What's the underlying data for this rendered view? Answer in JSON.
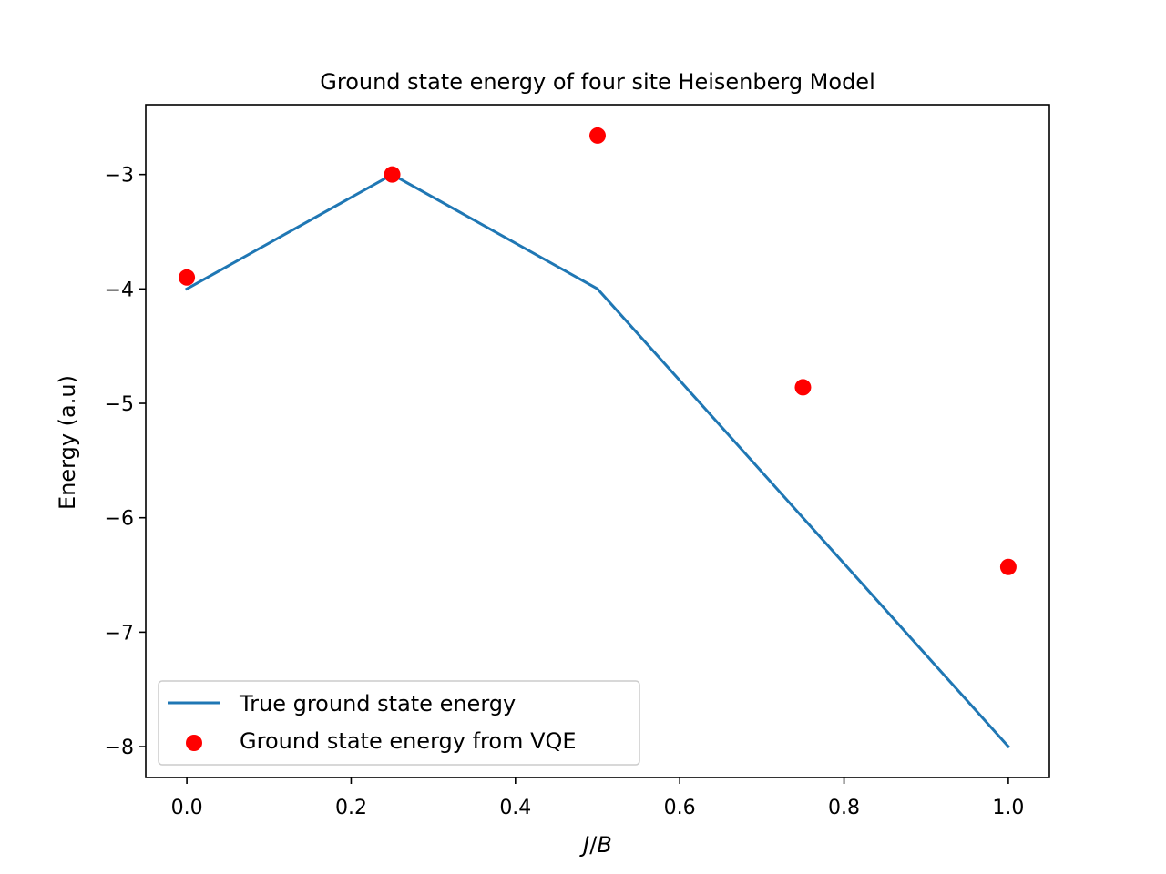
{
  "chart_data": {
    "type": "line",
    "title": "Ground state energy of four site Heisenberg Model",
    "xlabel": "J/B",
    "ylabel": "Energy (a.u)",
    "xlim": [
      -0.05,
      1.05
    ],
    "ylim": [
      -8.27,
      -2.39
    ],
    "x_ticks": [
      0.0,
      0.2,
      0.4,
      0.6,
      0.8,
      1.0
    ],
    "x_tick_labels": [
      "0.0",
      "0.2",
      "0.4",
      "0.6",
      "0.8",
      "1.0"
    ],
    "y_ticks": [
      -3,
      -4,
      -5,
      -6,
      -7,
      -8
    ],
    "y_tick_labels": [
      "−3",
      "−4",
      "−5",
      "−6",
      "−7",
      "−8"
    ],
    "grid": false,
    "legend_position": "lower-left",
    "series": [
      {
        "name": "True ground state energy",
        "kind": "line",
        "color": "#1f77b4",
        "x": [
          0.0,
          0.25,
          0.5,
          0.75,
          1.0
        ],
        "y": [
          -4.0,
          -3.0,
          -4.0,
          -6.0,
          -8.0
        ]
      },
      {
        "name": "Ground state energy from VQE",
        "kind": "scatter",
        "color": "#ff0000",
        "x": [
          0.0,
          0.25,
          0.5,
          0.75,
          1.0
        ],
        "y": [
          -3.9,
          -3.0,
          -2.66,
          -4.86,
          -6.43
        ]
      }
    ]
  }
}
